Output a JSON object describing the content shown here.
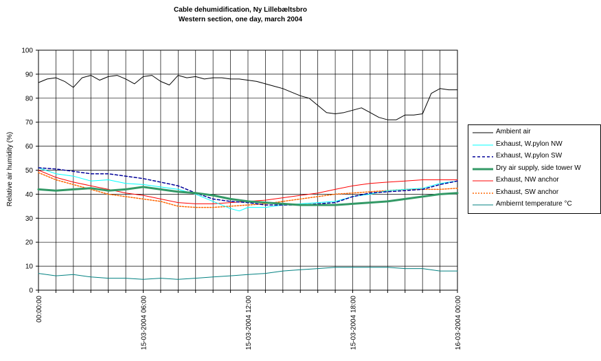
{
  "chart_data": {
    "type": "line",
    "title": "Cable dehumidification, Ny Lillebæltsbro",
    "subtitle": "Western section, one day, march 2004",
    "ylabel": "Relative air humidity (%)",
    "xlabel": "",
    "ylim": [
      0,
      100
    ],
    "y_ticks": [
      "0",
      "10",
      "20",
      "30",
      "40",
      "50",
      "60",
      "70",
      "80",
      "90",
      "100"
    ],
    "x_range_hours": [
      0,
      24
    ],
    "x_tick_labels": [
      {
        "hour": 0,
        "label": "00:00:00"
      },
      {
        "hour": 6,
        "label": "15-03-2004 06:00"
      },
      {
        "hour": 12,
        "label": "15-03-2004 12:00"
      },
      {
        "hour": 18,
        "label": "15-03-2004 18:00"
      },
      {
        "hour": 24,
        "label": "16-03-2004 00:00"
      }
    ],
    "grid": true,
    "legend_position": "right",
    "series": [
      {
        "name": "Ambient air",
        "color": "#000000",
        "style": "solid",
        "width": 1,
        "x": [
          0,
          0.5,
          1,
          1.5,
          2,
          2.5,
          3,
          3.5,
          4,
          4.5,
          5,
          5.5,
          6,
          6.5,
          7,
          7.5,
          8,
          8.5,
          9,
          9.5,
          10,
          10.5,
          11,
          11.5,
          12,
          12.5,
          13,
          13.5,
          14,
          14.5,
          15,
          15.5,
          16,
          16.5,
          17,
          17.5,
          18,
          18.5,
          19,
          19.5,
          20,
          20.5,
          21,
          21.5,
          22,
          22.5,
          23,
          23.5,
          24
        ],
        "y": [
          86.5,
          88,
          88.5,
          87,
          84.5,
          88.5,
          89.5,
          87.5,
          89,
          89.5,
          88,
          86,
          89,
          89.5,
          87,
          85.5,
          89.5,
          88.5,
          89,
          88,
          88.5,
          88.5,
          88,
          88,
          87.5,
          87,
          86,
          85,
          84,
          82.5,
          81,
          80,
          77,
          74,
          73.5,
          74,
          75,
          76,
          74,
          72,
          71,
          71,
          73,
          73,
          73.5,
          82,
          84,
          83.5,
          83.5
        ]
      },
      {
        "name": "Exhaust, W.pylon NW",
        "color": "#00ffff",
        "style": "solid",
        "width": 1,
        "x": [
          0,
          1,
          2,
          3,
          4,
          5,
          6,
          7,
          8,
          9,
          10,
          11,
          11.5,
          12,
          13,
          14,
          15,
          16,
          17,
          18,
          19,
          20,
          21,
          22,
          23,
          24
        ],
        "y": [
          51,
          48.5,
          47.5,
          45.5,
          46,
          44.5,
          44,
          43,
          42,
          40,
          37,
          34,
          33,
          34.5,
          34.5,
          35.5,
          36,
          36.5,
          37,
          39,
          40,
          41.5,
          42,
          42.5,
          44.5,
          45.5
        ]
      },
      {
        "name": "Exhaust, W.pylon SW",
        "color": "#000099",
        "style": "dashed",
        "width": 1.5,
        "x": [
          0,
          1,
          2,
          3,
          4,
          5,
          6,
          7,
          8,
          9,
          10,
          11,
          12,
          13,
          14,
          15,
          16,
          17,
          18,
          19,
          20,
          21,
          22,
          23,
          24
        ],
        "y": [
          51,
          50.5,
          49.5,
          48.5,
          48.5,
          47.5,
          46.5,
          45,
          43.5,
          40.5,
          38,
          37,
          36.5,
          35.5,
          35.5,
          35.5,
          36,
          36.5,
          39,
          40.5,
          41,
          41.5,
          42,
          44,
          45.5
        ]
      },
      {
        "name": "Dry air supply, side tower W",
        "color": "#339966",
        "style": "solid",
        "width": 3,
        "x": [
          0,
          1,
          2,
          3,
          4,
          5,
          6,
          7,
          8,
          9,
          10,
          11,
          12,
          13,
          14,
          15,
          16,
          17,
          18,
          19,
          20,
          21,
          22,
          23,
          24
        ],
        "y": [
          42,
          41.5,
          42,
          42.5,
          41.5,
          42,
          43,
          42,
          41,
          40.5,
          39.5,
          38,
          37,
          36.5,
          36,
          35.5,
          35.5,
          35.5,
          36,
          36.5,
          37,
          38,
          39,
          40,
          40.5
        ]
      },
      {
        "name": "Exhaust, NW anchor",
        "color": "#ff0000",
        "style": "solid",
        "width": 1,
        "x": [
          0,
          1,
          2,
          3,
          4,
          5,
          6,
          7,
          8,
          9,
          10,
          11,
          12,
          13,
          14,
          15,
          16,
          17,
          18,
          19,
          20,
          21,
          22,
          23,
          24
        ],
        "y": [
          50,
          47,
          45,
          43.5,
          42,
          40.5,
          39.5,
          38,
          36.5,
          36,
          36,
          36.5,
          37,
          37.5,
          38.5,
          39.5,
          40.5,
          42,
          43.5,
          44.5,
          45,
          45.5,
          46,
          46,
          46
        ]
      },
      {
        "name": "Exhaust, SW anchor",
        "color": "#ff6600",
        "style": "dotted",
        "width": 1.5,
        "x": [
          0,
          1,
          2,
          3,
          4,
          5,
          6,
          7,
          8,
          9,
          10,
          11,
          12,
          13,
          14,
          15,
          16,
          17,
          18,
          19,
          20,
          21,
          22,
          23,
          24
        ],
        "y": [
          49,
          46,
          44,
          42,
          40,
          39,
          38,
          37,
          35,
          34.5,
          34.5,
          35,
          35.5,
          36,
          37,
          38,
          39,
          40,
          40.5,
          41,
          41.5,
          42,
          42,
          42,
          42.5
        ]
      },
      {
        "name": "Ambiernt temperature °C",
        "color": "#008080",
        "style": "solid",
        "width": 1,
        "x": [
          0,
          1,
          2,
          3,
          4,
          5,
          6,
          7,
          8,
          9,
          10,
          11,
          12,
          13,
          14,
          15,
          16,
          17,
          18,
          19,
          20,
          21,
          22,
          23,
          24
        ],
        "y": [
          7,
          6,
          6.5,
          5.5,
          5,
          5,
          4.5,
          5,
          4.5,
          5,
          5.5,
          6,
          6.5,
          7,
          8,
          8.5,
          9,
          9.5,
          9.5,
          9.5,
          9.5,
          9,
          9,
          8,
          8
        ]
      }
    ]
  }
}
